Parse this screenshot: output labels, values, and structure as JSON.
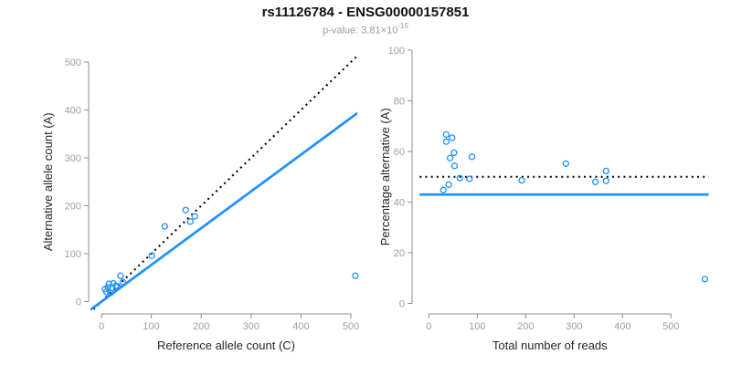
{
  "title": "rs11126784 - ENSG00000157851",
  "subtitle": {
    "text": "p-value: 3.81×10",
    "exponent": "-15"
  },
  "colors": {
    "accent_blue": "#1E90FF",
    "dotted_line": "#000000",
    "axis_line": "#8C8C8C",
    "tick_label": "#9E9E9E",
    "axis_title": "#262626",
    "title_text": "#111111",
    "subtitle_text": "#9A9A9A"
  },
  "chart_data": [
    {
      "type": "scatter",
      "panel": "left",
      "xlabel": "Reference allele count (C)",
      "ylabel": "Alternative allele count (A)",
      "xlim": [
        0,
        520
      ],
      "ylim": [
        0,
        520
      ],
      "xticks": [
        0,
        100,
        200,
        300,
        400,
        500
      ],
      "yticks": [
        0,
        100,
        200,
        300,
        400,
        500
      ],
      "grid": false,
      "legend": "none",
      "points": [
        [
          7,
          26
        ],
        [
          10,
          20
        ],
        [
          13,
          30
        ],
        [
          15,
          37
        ],
        [
          18,
          18
        ],
        [
          20,
          28
        ],
        [
          24,
          38
        ],
        [
          29,
          33
        ],
        [
          32,
          32
        ],
        [
          43,
          41
        ],
        [
          38,
          54
        ],
        [
          101,
          96
        ],
        [
          127,
          157
        ],
        [
          169,
          191
        ],
        [
          178,
          167
        ],
        [
          187,
          178
        ],
        [
          509,
          54
        ]
      ],
      "lines": [
        {
          "name": "identity-line",
          "style": "dotted",
          "color": "#000000",
          "x1": -16,
          "y1": -16,
          "x2": 515,
          "y2": 515
        },
        {
          "name": "regression-line",
          "style": "solid",
          "color": "#1E90FF",
          "x1": -22,
          "y1": -17,
          "x2": 515,
          "y2": 395
        }
      ]
    },
    {
      "type": "scatter",
      "panel": "right",
      "xlabel": "Total number of reads",
      "ylabel": "Percentage alternative (A)",
      "xlim": [
        0,
        580
      ],
      "ylim": [
        0,
        100
      ],
      "xticks": [
        0,
        100,
        200,
        300,
        400,
        500
      ],
      "yticks": [
        0,
        20,
        40,
        60,
        80,
        100
      ],
      "grid": false,
      "legend": "none",
      "points": [
        [
          30,
          44.8
        ],
        [
          36,
          66.7
        ],
        [
          36,
          63.9
        ],
        [
          41,
          46.9
        ],
        [
          44,
          57.4
        ],
        [
          48,
          65.4
        ],
        [
          52,
          59.5
        ],
        [
          53,
          54.3
        ],
        [
          64,
          49.5
        ],
        [
          84,
          49.2
        ],
        [
          89,
          57.9
        ],
        [
          192,
          48.6
        ],
        [
          283,
          55.2
        ],
        [
          344,
          48
        ],
        [
          366,
          52.3
        ],
        [
          366,
          48.4
        ],
        [
          570,
          9.6
        ]
      ],
      "lines": [
        {
          "name": "fifty-percent-line",
          "style": "dotted",
          "color": "#000000",
          "x1": -19,
          "y1": 50,
          "x2": 578,
          "y2": 50
        },
        {
          "name": "mean-percentage-line",
          "style": "solid",
          "color": "#1E90FF",
          "x1": -19,
          "y1": 43,
          "x2": 578,
          "y2": 43
        }
      ]
    }
  ]
}
